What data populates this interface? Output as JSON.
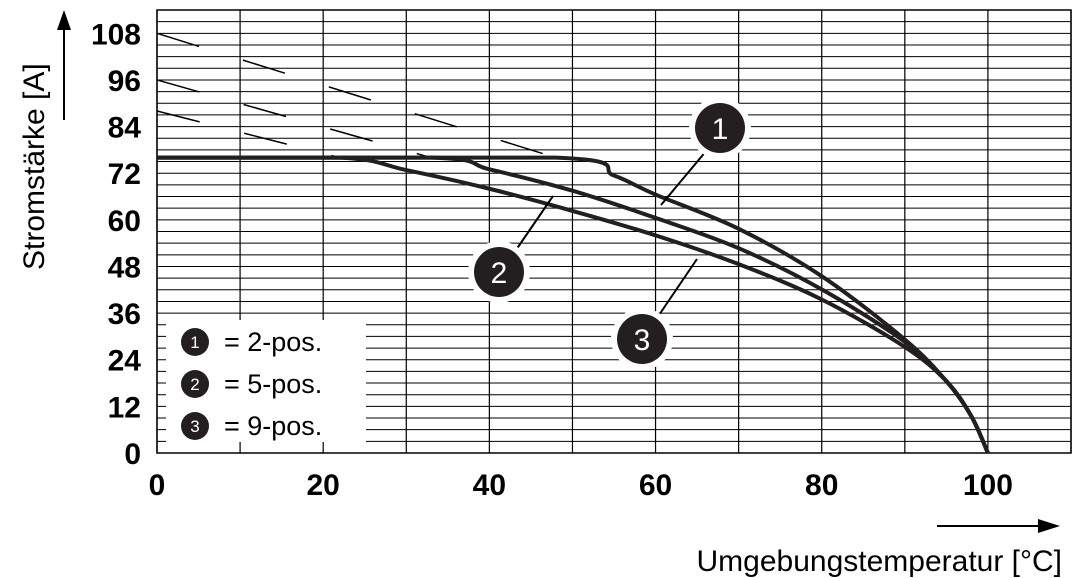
{
  "chart_data": {
    "type": "line",
    "xlabel": "Umgebungstemperatur [°C]",
    "ylabel": "Stromstärke [A]",
    "xlim": [
      0,
      110
    ],
    "ylim": [
      0,
      114
    ],
    "x_ticks": [
      "0",
      "20",
      "40",
      "60",
      "80",
      "100"
    ],
    "y_ticks": [
      "0",
      "12",
      "24",
      "36",
      "48",
      "60",
      "72",
      "84",
      "96",
      "108"
    ],
    "grid": true,
    "legend": {
      "placement": "bottom-left",
      "entries": [
        {
          "marker": "1",
          "text": "= 2-pos."
        },
        {
          "marker": "2",
          "text": "= 5-pos."
        },
        {
          "marker": "3",
          "text": "= 9-pos."
        }
      ]
    },
    "series": [
      {
        "name": "1",
        "color": "#231f20",
        "x": [
          0,
          48,
          55,
          60,
          70,
          80,
          90,
          95,
          98,
          100
        ],
        "y": [
          76,
          76,
          71.4,
          66.5,
          57.7,
          45.5,
          29.2,
          18.5,
          9.5,
          0
        ]
      },
      {
        "name": "2",
        "color": "#231f20",
        "x": [
          0,
          33,
          40,
          50,
          60,
          70,
          80,
          90,
          95,
          98,
          100
        ],
        "y": [
          76,
          76,
          73,
          67.5,
          60.5,
          52.7,
          42.1,
          28.6,
          18.5,
          9.5,
          0
        ]
      },
      {
        "name": "3",
        "color": "#231f20",
        "x": [
          0,
          22,
          30,
          40,
          50,
          60,
          70,
          80,
          90,
          95,
          98,
          100
        ],
        "y": [
          76,
          76,
          72.8,
          68,
          62.3,
          56,
          48.6,
          39.5,
          27.3,
          18.5,
          9.5,
          0
        ]
      }
    ],
    "dashed_overload_lines": [
      {
        "x": [
          0,
          48
        ],
        "y": [
          108,
          76
        ]
      },
      {
        "x": [
          0,
          33
        ],
        "y": [
          96,
          76
        ]
      },
      {
        "x": [
          0,
          22
        ],
        "y": [
          88,
          76
        ]
      }
    ],
    "annotations": [
      {
        "label": "1",
        "series": "1"
      },
      {
        "label": "2",
        "series": "2"
      },
      {
        "label": "3",
        "series": "3"
      }
    ]
  }
}
